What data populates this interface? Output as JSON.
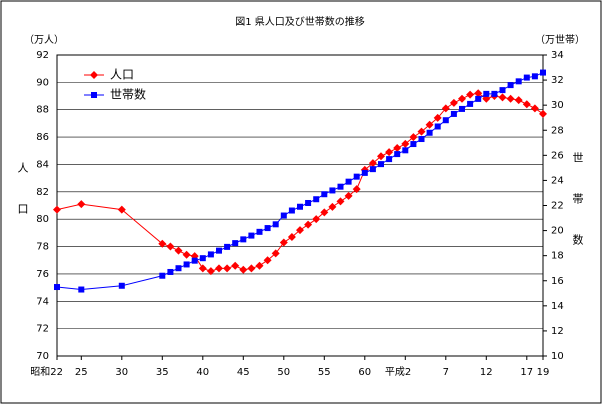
{
  "chart_data": {
    "type": "line",
    "title": "図1 県人口及び世帯数の推移",
    "y_unit": "（万人）",
    "y2_unit": "（万世帯）",
    "y_label": "人口",
    "y2_label": "世帯数",
    "x": [
      22,
      25,
      30,
      35,
      36,
      37,
      38,
      39,
      40,
      41,
      42,
      43,
      44,
      45,
      46,
      47,
      48,
      49,
      50,
      51,
      52,
      53,
      54,
      55,
      56,
      57,
      58,
      59,
      60,
      61,
      62,
      63,
      64,
      65,
      66,
      67,
      68,
      69,
      70,
      71,
      72,
      73,
      74,
      75,
      76,
      77,
      78,
      79,
      80,
      81,
      82
    ],
    "xlim": [
      22,
      82
    ],
    "xticks": [
      {
        "value": 22,
        "label": "昭和22"
      },
      25,
      30,
      35,
      40,
      45,
      50,
      55,
      60,
      {
        "value": 65,
        "label": "平成2"
      },
      {
        "value": 70,
        "label": "7"
      },
      {
        "value": 75,
        "label": "12"
      },
      {
        "value": 80,
        "label": "17"
      },
      {
        "value": 82,
        "label": "19"
      }
    ],
    "ylim": [
      70,
      92
    ],
    "yticks": [
      70,
      72,
      74,
      76,
      78,
      80,
      82,
      84,
      86,
      88,
      90,
      92
    ],
    "y2lim": [
      10,
      34
    ],
    "y2ticks": [
      10,
      12,
      14,
      16,
      18,
      20,
      22,
      24,
      26,
      28,
      30,
      32,
      34
    ],
    "legend": "upper left",
    "series": [
      {
        "name": "人口",
        "color": "#ff0000",
        "marker": "diamond",
        "values": [
          80.7,
          81.1,
          80.7,
          78.2,
          78.0,
          77.7,
          77.4,
          77.3,
          76.4,
          76.2,
          76.4,
          76.4,
          76.6,
          76.3,
          76.4,
          76.6,
          77.0,
          77.5,
          78.3,
          78.7,
          79.2,
          79.6,
          80.0,
          80.5,
          80.9,
          81.3,
          81.7,
          82.2,
          83.6,
          84.1,
          84.6,
          84.9,
          85.2,
          85.5,
          86.0,
          86.4,
          86.9,
          87.4,
          88.1,
          88.5,
          88.8,
          89.1,
          89.2,
          88.8,
          89.0,
          88.9,
          88.8,
          88.7,
          88.4,
          88.1,
          87.7
        ]
      },
      {
        "name": "世帯数",
        "color": "#0000ff",
        "marker": "square",
        "axis": "y2",
        "values": [
          15.5,
          15.3,
          15.6,
          16.4,
          16.7,
          17.0,
          17.3,
          17.6,
          17.8,
          18.1,
          18.4,
          18.7,
          19.0,
          19.3,
          19.6,
          19.9,
          20.2,
          20.5,
          21.2,
          21.6,
          21.9,
          22.2,
          22.5,
          22.9,
          23.2,
          23.5,
          23.9,
          24.3,
          24.6,
          24.9,
          25.3,
          25.7,
          26.1,
          26.4,
          26.9,
          27.3,
          27.8,
          28.3,
          28.8,
          29.3,
          29.7,
          30.1,
          30.5,
          30.9,
          30.9,
          31.2,
          31.6,
          31.9,
          32.2,
          32.3,
          32.6
        ]
      }
    ]
  }
}
